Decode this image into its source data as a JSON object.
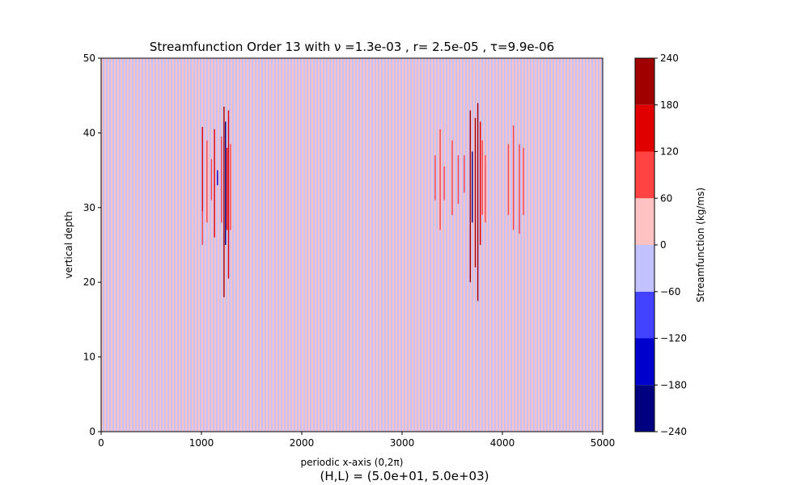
{
  "chart_data": {
    "type": "heatmap",
    "title": "Streamfunction Order 13 with ν =1.3e-03 , r= 2.5e-05 , τ=9.9e-06",
    "xlabel": "periodic x-axis (0,2π)",
    "ylabel": "vertical depth",
    "footer": "(H,L) = (5.0e+01, 5.0e+03)",
    "xlim": [
      0,
      5000
    ],
    "ylim": [
      0,
      50
    ],
    "x_ticks": [
      0,
      1000,
      2000,
      3000,
      4000,
      5000
    ],
    "y_ticks": [
      0,
      10,
      20,
      30,
      40,
      50
    ],
    "colorbar": {
      "label": "Streamfunction (kg/ms)",
      "levels": [
        -240,
        -180,
        -120,
        -60,
        0,
        60,
        120,
        180,
        240
      ],
      "tick_labels": [
        "−240",
        "−180",
        "−120",
        "−60",
        "0",
        "60",
        "120",
        "180",
        "240"
      ],
      "colors": [
        "#000080",
        "#0000cc",
        "#4242ff",
        "#c2c2ff",
        "#ffc2c2",
        "#ff4242",
        "#e00000",
        "#a00000"
      ]
    },
    "background_pattern": {
      "description_values": "alternating thin vertical stripes of small positive (0 to 60) and small negative (-60 to 0) streamfunction across the full domain",
      "positive_color": "#ffc2c2",
      "negative_color": "#c2c2ff"
    },
    "features": [
      {
        "x": 1010,
        "y0": 29.5,
        "y1": 40.8,
        "value": 150
      },
      {
        "x": 1010,
        "y0": 25.0,
        "y1": 29.5,
        "value": 80
      },
      {
        "x": 1055,
        "y0": 28.0,
        "y1": 39.0,
        "value": 110
      },
      {
        "x": 1100,
        "y0": 31.0,
        "y1": 36.5,
        "value": 90
      },
      {
        "x": 1130,
        "y0": 26.0,
        "y1": 40.5,
        "value": 130
      },
      {
        "x": 1160,
        "y0": 33.0,
        "y1": 35.0,
        "value": -150
      },
      {
        "x": 1200,
        "y0": 28.0,
        "y1": 39.5,
        "value": 100
      },
      {
        "x": 1225,
        "y0": 18.0,
        "y1": 43.5,
        "value": 200
      },
      {
        "x": 1240,
        "y0": 25.0,
        "y1": 41.5,
        "value": -200
      },
      {
        "x": 1255,
        "y0": 27.0,
        "y1": 38.0,
        "value": 160
      },
      {
        "x": 1270,
        "y0": 20.5,
        "y1": 43.0,
        "value": 170
      },
      {
        "x": 1290,
        "y0": 27.0,
        "y1": 38.5,
        "value": 100
      },
      {
        "x": 3330,
        "y0": 31.0,
        "y1": 37.0,
        "value": 90
      },
      {
        "x": 3380,
        "y0": 27.0,
        "y1": 40.5,
        "value": 100
      },
      {
        "x": 3420,
        "y0": 31.0,
        "y1": 35.5,
        "value": 90
      },
      {
        "x": 3500,
        "y0": 29.0,
        "y1": 39.0,
        "value": 110
      },
      {
        "x": 3560,
        "y0": 30.5,
        "y1": 37.0,
        "value": 100
      },
      {
        "x": 3620,
        "y0": 32.0,
        "y1": 37.0,
        "value": 90
      },
      {
        "x": 3680,
        "y0": 20.0,
        "y1": 43.0,
        "value": 180
      },
      {
        "x": 3700,
        "y0": 28.0,
        "y1": 37.5,
        "value": -200
      },
      {
        "x": 3730,
        "y0": 22.0,
        "y1": 42.0,
        "value": 190
      },
      {
        "x": 3755,
        "y0": 17.5,
        "y1": 44.0,
        "value": 200
      },
      {
        "x": 3780,
        "y0": 25.0,
        "y1": 41.5,
        "value": 160
      },
      {
        "x": 3800,
        "y0": 29.0,
        "y1": 39.0,
        "value": 110
      },
      {
        "x": 3830,
        "y0": 28.0,
        "y1": 37.0,
        "value": 100
      },
      {
        "x": 4060,
        "y0": 29.0,
        "y1": 38.5,
        "value": 100
      },
      {
        "x": 4110,
        "y0": 27.0,
        "y1": 41.0,
        "value": 110
      },
      {
        "x": 4170,
        "y0": 26.5,
        "y1": 38.5,
        "value": 100
      },
      {
        "x": 4210,
        "y0": 29.0,
        "y1": 38.0,
        "value": 90
      }
    ]
  }
}
